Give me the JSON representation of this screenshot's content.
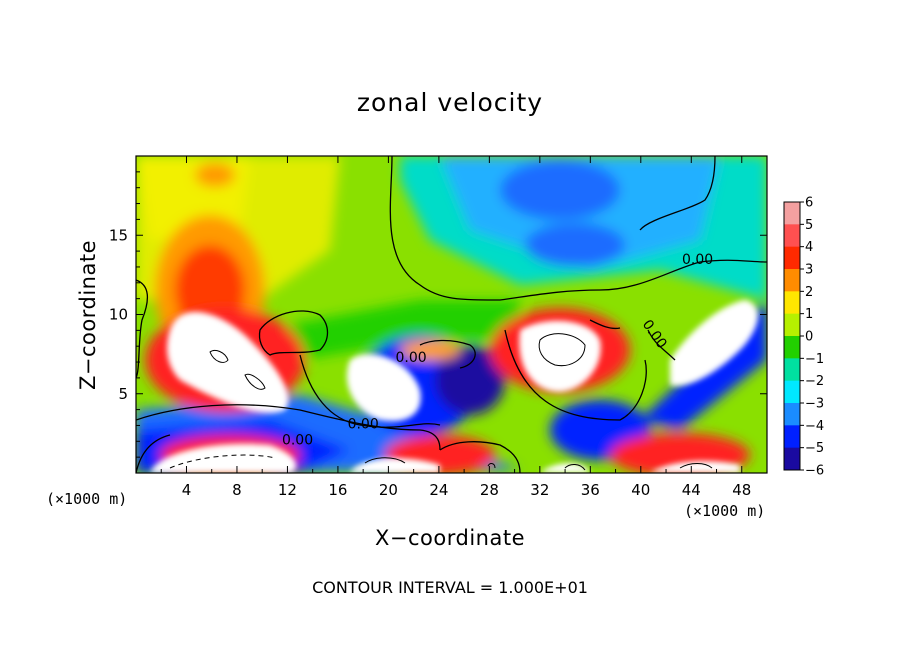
{
  "chart_data": {
    "type": "heatmap",
    "title": "zonal velocity",
    "xlabel": "X−coordinate",
    "ylabel": "Z−coordinate",
    "x_unit_label_left": "(×1000 m)",
    "x_unit_label_right": "(×1000 m)",
    "xlim": [
      0,
      50
    ],
    "ylim": [
      0,
      20
    ],
    "x_ticks": [
      4,
      8,
      12,
      16,
      20,
      24,
      28,
      32,
      36,
      40,
      44,
      48
    ],
    "y_ticks": [
      5,
      10,
      15
    ],
    "colorbar": {
      "levels": [
        6,
        5,
        4,
        3,
        2,
        1,
        0,
        -1,
        -2,
        -3,
        -4,
        -5,
        -6
      ],
      "labels": [
        "6",
        "5",
        "4",
        "3",
        "2",
        "1",
        "0",
        "−1",
        "−2",
        "−3",
        "−4",
        "−5",
        "−6"
      ],
      "colors": [
        "#f4a0a0",
        "#ff5050",
        "#ff2a00",
        "#ff8c00",
        "#ffe600",
        "#b6f000",
        "#22d000",
        "#00e0a0",
        "#00e8ff",
        "#1a8cff",
        "#0020ff",
        "#1a0aa0",
        "#6a1a9a"
      ]
    },
    "contour_labels": [
      {
        "text": "0.00",
        "x": 44.5,
        "y": 13.2
      },
      {
        "text": "0.00",
        "x": 40.8,
        "y": 8.6,
        "rotate": 55
      },
      {
        "text": "0.00",
        "x": 21.8,
        "y": 7.0
      },
      {
        "text": "0.00",
        "x": 18.0,
        "y": 2.8
      },
      {
        "text": "0.00",
        "x": 12.8,
        "y": 1.8
      }
    ],
    "footer": "CONTOUR INTERVAL = 1.000E+01"
  }
}
